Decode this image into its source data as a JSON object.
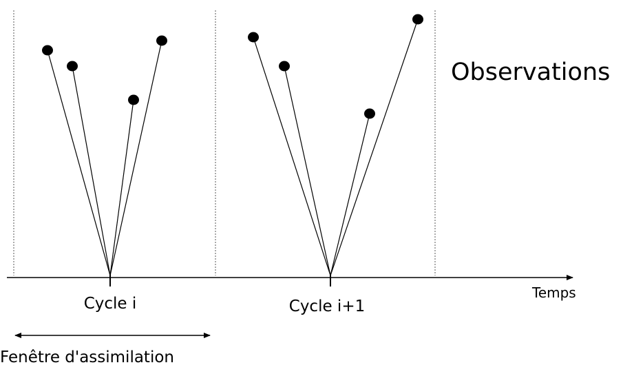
{
  "observations_label": "Observations",
  "time_axis_label": "Temps",
  "cycles": [
    {
      "label": "Cycle i"
    },
    {
      "label": "Cycle i+1"
    }
  ],
  "window_label": "Fenêtre d'assimilation"
}
